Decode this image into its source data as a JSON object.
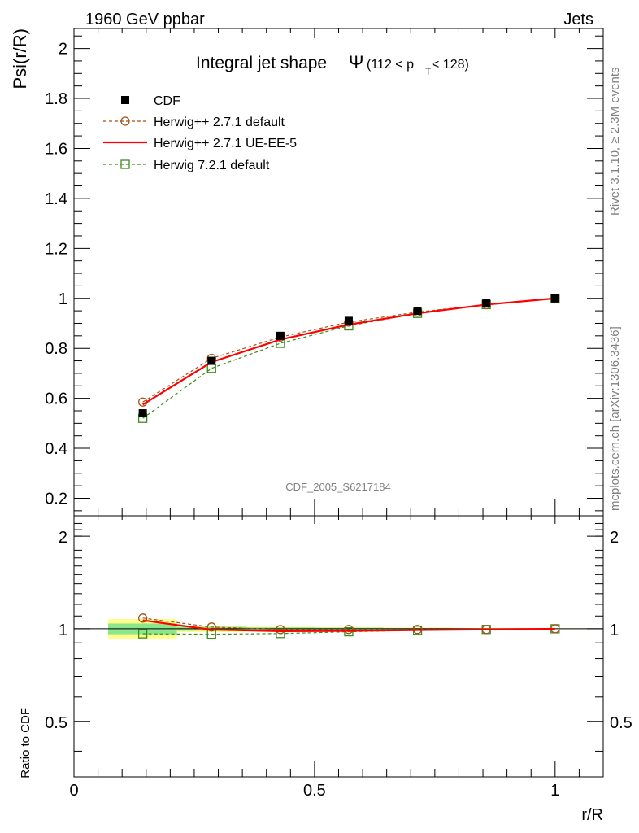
{
  "header": {
    "left": "1960 GeV ppbar",
    "right": "Jets"
  },
  "side": {
    "rivet": "Rivet 3.1.10, ≥ 2.3M events",
    "mcplots": "mcplots.cern.ch [arXiv:1306.3436]"
  },
  "title": {
    "main": "Integral jet shape",
    "symbol": "Ψ",
    "range_open": "(112 < p",
    "range_sub": "T",
    "range_close": " < 128)"
  },
  "watermark": "CDF_2005_S6217184",
  "colors": {
    "data": "#000000",
    "herwigpp_default": "#a0521a",
    "herwigpp_ueee5": "#ff0000",
    "herwig7": "#3c8c1e",
    "band_inner": "#8ce68c",
    "band_outer": "#ffff8c"
  },
  "chart_data": [
    {
      "type": "line",
      "panel": "main",
      "ylabel": "Psi(r/R)",
      "xlabel": "r/R",
      "xlim": [
        0,
        1.1
      ],
      "ylim": [
        0.13,
        2.08
      ],
      "yticks": [
        0.2,
        0.4,
        0.6,
        0.8,
        1,
        1.2,
        1.4,
        1.6,
        1.8,
        2
      ],
      "ytick_labels": [
        "0.2",
        "0.4",
        "0.6",
        "0.8",
        "1",
        "1.2",
        "1.4",
        "1.6",
        "1.8",
        "2"
      ],
      "x": [
        0.143,
        0.286,
        0.429,
        0.571,
        0.714,
        0.857,
        1.0
      ],
      "series": [
        {
          "name": "CDF",
          "key": "data",
          "marker": "filled-square",
          "values": [
            0.54,
            0.75,
            0.85,
            0.91,
            0.95,
            0.98,
            1.0
          ]
        },
        {
          "name": "Herwig++ 2.7.1 default",
          "key": "herwigpp_default",
          "marker": "open-circle",
          "dash": true,
          "values": [
            0.585,
            0.76,
            0.845,
            0.905,
            0.945,
            0.975,
            1.0
          ]
        },
        {
          "name": "Herwig++ 2.7.1 UE-EE-5",
          "key": "herwigpp_ueee5",
          "marker": "none",
          "dash": false,
          "values": [
            0.575,
            0.745,
            0.835,
            0.895,
            0.94,
            0.975,
            1.0
          ]
        },
        {
          "name": "Herwig 7.2.1 default",
          "key": "herwig7",
          "marker": "open-square",
          "dash": true,
          "values": [
            0.52,
            0.72,
            0.82,
            0.89,
            0.94,
            0.975,
            1.0
          ]
        }
      ],
      "legend_position": "top-left"
    },
    {
      "type": "line",
      "panel": "ratio",
      "ylabel": "Ratio to CDF",
      "xlabel": "r/R",
      "xlim": [
        0,
        1.1
      ],
      "ylim": [
        0.33,
        2.33
      ],
      "yscale": "log",
      "yticks": [
        0.5,
        1,
        2
      ],
      "ytick_labels": [
        "0.5",
        "1",
        "2"
      ],
      "xticks": [
        0,
        0.5,
        1
      ],
      "xtick_labels": [
        "0",
        "0.5",
        "1"
      ],
      "x": [
        0.143,
        0.286,
        0.429,
        0.571,
        0.714,
        0.857,
        1.0
      ],
      "uncertainty_band": {
        "bins": [
          [
            0.071,
            0.214
          ],
          [
            0.214,
            0.357
          ],
          [
            0.357,
            0.5
          ],
          [
            0.5,
            0.643
          ],
          [
            0.643,
            0.786
          ],
          [
            0.786,
            0.929
          ],
          [
            0.929,
            1.071
          ]
        ],
        "inner": [
          0.04,
          0.015,
          0.01,
          0.008,
          0.006,
          0.004,
          0.002
        ],
        "outer": [
          0.075,
          0.025,
          0.015,
          0.012,
          0.009,
          0.006,
          0.003
        ]
      },
      "series": [
        {
          "name": "Herwig++ 2.7.1 default",
          "key": "herwigpp_default",
          "marker": "open-circle",
          "dash": true,
          "values": [
            1.083,
            1.013,
            0.994,
            0.995,
            0.995,
            0.995,
            1.0
          ]
        },
        {
          "name": "Herwig++ 2.7.1 UE-EE-5",
          "key": "herwigpp_ueee5",
          "marker": "none",
          "dash": false,
          "values": [
            1.065,
            0.993,
            0.982,
            0.984,
            0.99,
            0.995,
            1.0
          ]
        },
        {
          "name": "Herwig 7.2.1 default",
          "key": "herwig7",
          "marker": "open-square",
          "dash": true,
          "values": [
            0.963,
            0.96,
            0.965,
            0.978,
            0.989,
            0.995,
            1.0
          ]
        }
      ]
    }
  ]
}
